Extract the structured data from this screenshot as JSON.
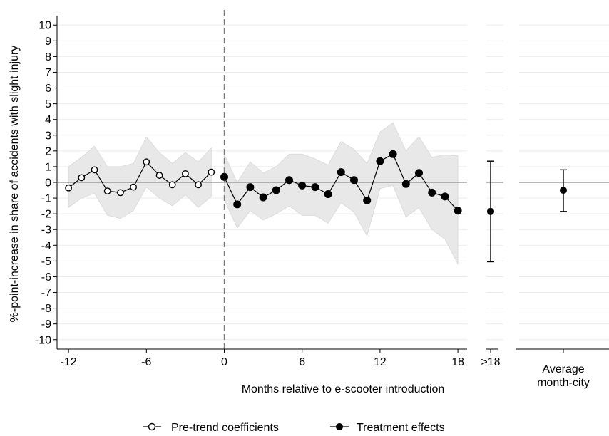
{
  "chart_data": {
    "type": "line",
    "ylabel": "%-point-increase in share of accidents with slight injury",
    "xlabel": "Months relative to e-scooter introduction",
    "ylim": [
      -10.6,
      10.6
    ],
    "yticks": [
      -10,
      -9,
      -8,
      -7,
      -6,
      -5,
      -4,
      -3,
      -2,
      -1,
      0,
      1,
      2,
      3,
      4,
      5,
      6,
      7,
      8,
      9,
      10
    ],
    "xlim": [
      -12.5,
      19
    ],
    "xticks": [
      -12,
      -6,
      0,
      6,
      12,
      18
    ],
    "event_line_x": 0,
    "grid": true,
    "legend_position": "bottom",
    "series": [
      {
        "name": "Pre-trend coefficients",
        "marker": "hollow-circle",
        "x": [
          -12,
          -11,
          -10,
          -9,
          -8,
          -7,
          -6,
          -5,
          -4,
          -3,
          -2,
          -1
        ],
        "y": [
          -0.35,
          0.3,
          0.8,
          -0.55,
          -0.65,
          -0.3,
          1.3,
          0.45,
          -0.15,
          0.55,
          -0.15,
          0.65
        ],
        "ci_low": [
          -1.6,
          -1.0,
          -0.7,
          -2.1,
          -2.3,
          -1.8,
          -0.3,
          -1.0,
          -1.5,
          -0.8,
          -1.6,
          -0.9
        ],
        "ci_high": [
          1.0,
          1.6,
          2.3,
          1.0,
          1.0,
          1.2,
          2.9,
          1.9,
          1.2,
          1.9,
          1.3,
          2.2
        ]
      },
      {
        "name": "Treatment effects",
        "marker": "filled-circle",
        "x": [
          0,
          1,
          2,
          3,
          4,
          5,
          6,
          7,
          8,
          9,
          10,
          11,
          12,
          13,
          14,
          15,
          16,
          17,
          18
        ],
        "y": [
          0.35,
          -1.4,
          -0.3,
          -0.95,
          -0.5,
          0.15,
          -0.2,
          -0.3,
          -0.75,
          0.65,
          0.15,
          -1.15,
          1.35,
          1.8,
          -0.1,
          0.6,
          -0.65,
          -0.9,
          -1.8
        ],
        "ci_low": [
          -1.1,
          -2.9,
          -1.8,
          -2.4,
          -2.0,
          -1.5,
          -2.1,
          -2.1,
          -2.6,
          -1.3,
          -1.9,
          -3.4,
          -0.4,
          -0.2,
          -2.2,
          -1.6,
          -3.0,
          -3.6,
          -5.2
        ],
        "ci_high": [
          1.8,
          0.0,
          1.3,
          0.6,
          1.0,
          1.8,
          1.8,
          1.5,
          1.1,
          2.6,
          2.1,
          1.2,
          3.2,
          3.8,
          2.0,
          2.9,
          1.6,
          1.75,
          1.7
        ]
      }
    ],
    "panels": [
      {
        "label": ">18",
        "estimate": -1.85,
        "ci_low": -5.05,
        "ci_high": 1.35
      },
      {
        "label_line1": "Average",
        "label_line2": "month-city",
        "estimate": -0.5,
        "ci_low": -1.85,
        "ci_high": 0.8
      }
    ]
  }
}
